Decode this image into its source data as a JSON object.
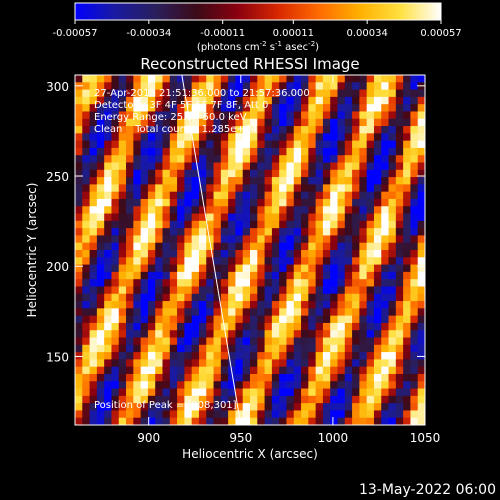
{
  "chart_data": {
    "type": "heatmap",
    "title": "Reconstructed RHESSI Image",
    "xlabel": "Heliocentric X (arcsec)",
    "ylabel": "Heliocentric Y (arcsec)",
    "xlim": [
      860,
      1050
    ],
    "ylim": [
      112,
      306
    ],
    "x_ticks": [
      "900",
      "950",
      "1000",
      "1050"
    ],
    "x_tick_values": [
      900,
      950,
      1000,
      1050
    ],
    "y_ticks": [
      "150",
      "200",
      "250",
      "300"
    ],
    "y_tick_values": [
      150,
      200,
      250,
      300
    ],
    "colorbar": {
      "ticks": [
        "-0.00057",
        "-0.00034",
        "-0.00011",
        "0.00011",
        "0.00034",
        "0.00057"
      ],
      "tick_values": [
        -0.00057,
        -0.00034,
        -0.00011,
        0.00011,
        0.00034,
        0.00057
      ],
      "range": [
        -0.00057,
        0.00057
      ],
      "colormap": [
        "#0000ff",
        "#1a1aa0",
        "#2a1f5a",
        "#3d0a18",
        "#8a0010",
        "#d82800",
        "#ff6a00",
        "#ffb000",
        "#ffe040",
        "#ffffff"
      ]
    },
    "annotations": [
      "27-Apr-2013 21:51:36.000 to 21:57:36.000",
      "Detectors: 3F 4F 5F 6F 7F 8F, Att 0",
      "Energy Range: 25.0 - 50.0 keV",
      "Clean    Total counts: 1.285e+04",
      "Position of Peak = [908,301]"
    ],
    "limb_line": {
      "x": [
        918,
        950
      ],
      "y": [
        306,
        112
      ]
    },
    "stripe_direction": "diagonal, descending to the right",
    "peak": {
      "x": 908,
      "y": 301
    }
  },
  "units_label": {
    "prefix": "(photons cm",
    "sup1": "-2",
    "mid1": " s",
    "sup2": "-1",
    "mid2": " asec",
    "sup3": "-2",
    "suffix": ")"
  },
  "footer": {
    "timestamp": "13-May-2022 06:00"
  }
}
